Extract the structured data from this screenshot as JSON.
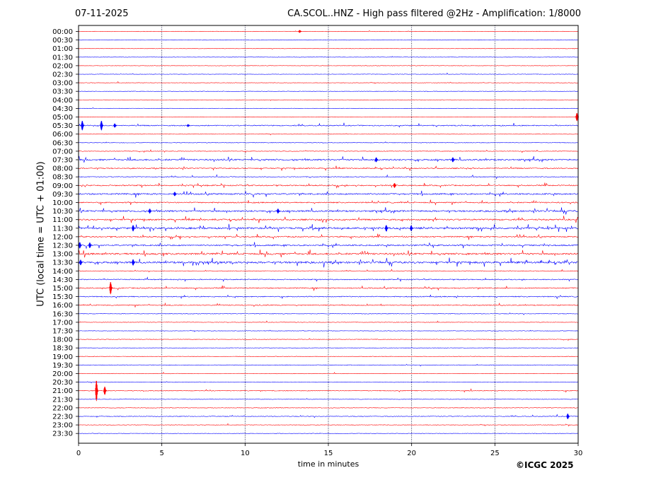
{
  "header": {
    "date": "07-11-2025",
    "title": "CA.SCOL..HNZ - High pass filtered @2Hz - Amplification: 1/8000"
  },
  "footer": {
    "copyright": "©ICGC 2025"
  },
  "chart_data": {
    "type": "line",
    "title": "CA.SCOL..HNZ - High pass filtered @2Hz - Amplification: 1/8000",
    "xlabel": "time in minutes",
    "ylabel": "UTC (local time = UTC + 01:00)",
    "xlim": [
      0,
      30
    ],
    "x_ticks": [
      0,
      5,
      10,
      15,
      20,
      25,
      30
    ],
    "grid": "vertical dotted lines at 5-minute intervals",
    "row_colors": [
      "#ff0000",
      "#0000ff"
    ],
    "rows": [
      "00:00",
      "00:30",
      "01:00",
      "01:30",
      "02:00",
      "02:30",
      "03:00",
      "03:30",
      "04:00",
      "04:30",
      "05:00",
      "05:30",
      "06:00",
      "06:30",
      "07:00",
      "07:30",
      "08:00",
      "08:30",
      "09:00",
      "09:30",
      "10:00",
      "10:30",
      "11:00",
      "11:30",
      "12:00",
      "12:30",
      "13:00",
      "13:30",
      "14:00",
      "14:30",
      "15:00",
      "15:30",
      "16:00",
      "16:30",
      "17:00",
      "17:30",
      "18:00",
      "18:30",
      "19:00",
      "19:30",
      "20:00",
      "20:30",
      "21:00",
      "21:30",
      "22:00",
      "22:30",
      "23:00",
      "23:30"
    ],
    "activity_level": [
      0.05,
      0.03,
      0.03,
      0.03,
      0.03,
      0.03,
      0.05,
      0.04,
      0.03,
      0.03,
      0.05,
      0.35,
      0.04,
      0.1,
      0.12,
      0.6,
      0.35,
      0.2,
      0.4,
      0.55,
      0.4,
      0.65,
      0.55,
      0.75,
      0.45,
      0.55,
      0.7,
      0.8,
      0.1,
      0.3,
      0.35,
      0.3,
      0.3,
      0.1,
      0.05,
      0.05,
      0.1,
      0.05,
      0.08,
      0.1,
      0.05,
      0.05,
      0.2,
      0.05,
      0.12,
      0.15,
      0.08,
      0.05
    ],
    "events": [
      {
        "row": "00:00",
        "minute": 13.3,
        "amplitude": 0.2
      },
      {
        "row": "05:00",
        "minute": 29.95,
        "amplitude": 0.6
      },
      {
        "row": "05:30",
        "minute": 0.25,
        "amplitude": 0.7
      },
      {
        "row": "05:30",
        "minute": 1.4,
        "amplitude": 0.7
      },
      {
        "row": "05:30",
        "minute": 2.2,
        "amplitude": 0.3
      },
      {
        "row": "05:30",
        "minute": 6.6,
        "amplitude": 0.2
      },
      {
        "row": "07:30",
        "minute": 17.9,
        "amplitude": 0.35
      },
      {
        "row": "07:30",
        "minute": 22.5,
        "amplitude": 0.35
      },
      {
        "row": "09:00",
        "minute": 19.0,
        "amplitude": 0.35
      },
      {
        "row": "09:30",
        "minute": 5.8,
        "amplitude": 0.3
      },
      {
        "row": "10:30",
        "minute": 4.3,
        "amplitude": 0.35
      },
      {
        "row": "10:30",
        "minute": 12.0,
        "amplitude": 0.35
      },
      {
        "row": "11:30",
        "minute": 3.3,
        "amplitude": 0.45
      },
      {
        "row": "11:30",
        "minute": 18.5,
        "amplitude": 0.45
      },
      {
        "row": "11:30",
        "minute": 20.0,
        "amplitude": 0.4
      },
      {
        "row": "12:30",
        "minute": 0.1,
        "amplitude": 0.45
      },
      {
        "row": "12:30",
        "minute": 0.7,
        "amplitude": 0.4
      },
      {
        "row": "13:30",
        "minute": 3.3,
        "amplitude": 0.45
      },
      {
        "row": "13:30",
        "minute": 0.15,
        "amplitude": 0.4
      },
      {
        "row": "15:00",
        "minute": 1.95,
        "amplitude": 0.9
      },
      {
        "row": "21:00",
        "minute": 1.1,
        "amplitude": 1.5
      },
      {
        "row": "21:00",
        "minute": 1.6,
        "amplitude": 0.6
      },
      {
        "row": "22:30",
        "minute": 29.4,
        "amplitude": 0.4
      }
    ]
  }
}
